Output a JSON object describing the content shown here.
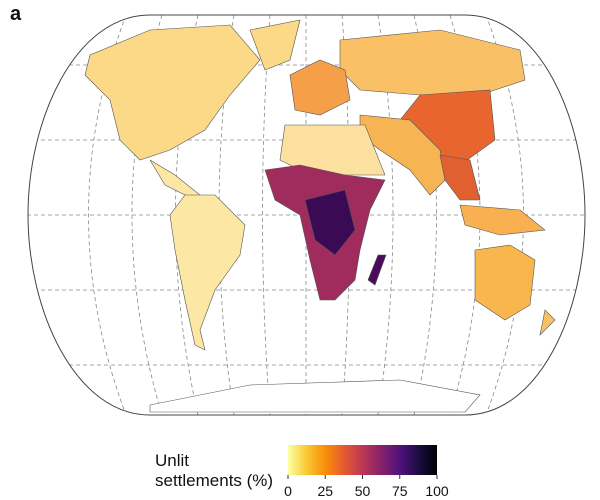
{
  "panel_label": "a",
  "legend": {
    "title_lines": [
      "Unlit",
      "settlements (%)"
    ],
    "range": [
      0,
      100
    ],
    "ticks": [
      0,
      25,
      50,
      75,
      100
    ],
    "colors": [
      "#fcffa4",
      "#f9c932",
      "#f98e09",
      "#e45a31",
      "#bc3754",
      "#87216b",
      "#51127c",
      "#1b0c41",
      "#000004"
    ]
  }
}
